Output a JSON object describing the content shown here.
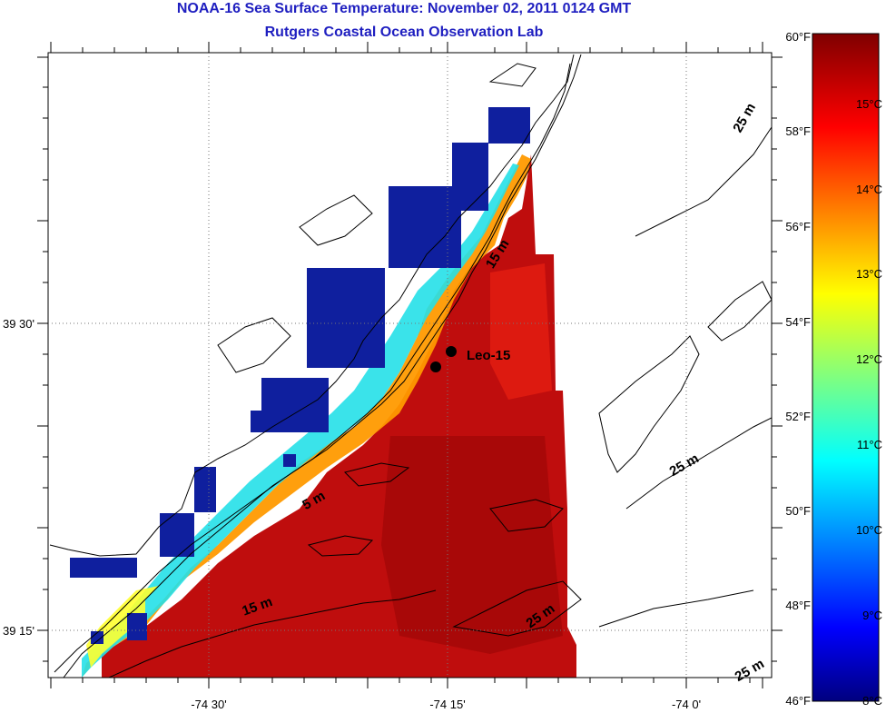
{
  "title": {
    "line1": "NOAA-16 Sea Surface Temperature:  November 02, 2011 0124 GMT",
    "line2": "Rutgers Coastal Ocean Observation Lab"
  },
  "axes": {
    "x_ticks": [
      "-74 30'",
      "-74 15'",
      "-74 0'"
    ],
    "y_ticks": [
      "39 30'",
      "39 15'"
    ]
  },
  "colorbar": {
    "fahrenheit_labels": [
      "60°F",
      "58°F",
      "56°F",
      "54°F",
      "52°F",
      "50°F",
      "48°F",
      "46°F"
    ],
    "celsius_labels": [
      "15°C",
      "14°C",
      "13°C",
      "12°C",
      "11°C",
      "10°C",
      "9°C",
      "8°C"
    ],
    "range_c": [
      8,
      15.56
    ],
    "colormap": "jet"
  },
  "isobaths": {
    "5m": "5 m",
    "15m": "15 m",
    "25m": "25 m"
  },
  "station": {
    "name": "Leo-15"
  },
  "colors": {
    "title": "#1f1fc0",
    "coast": "#000000"
  }
}
